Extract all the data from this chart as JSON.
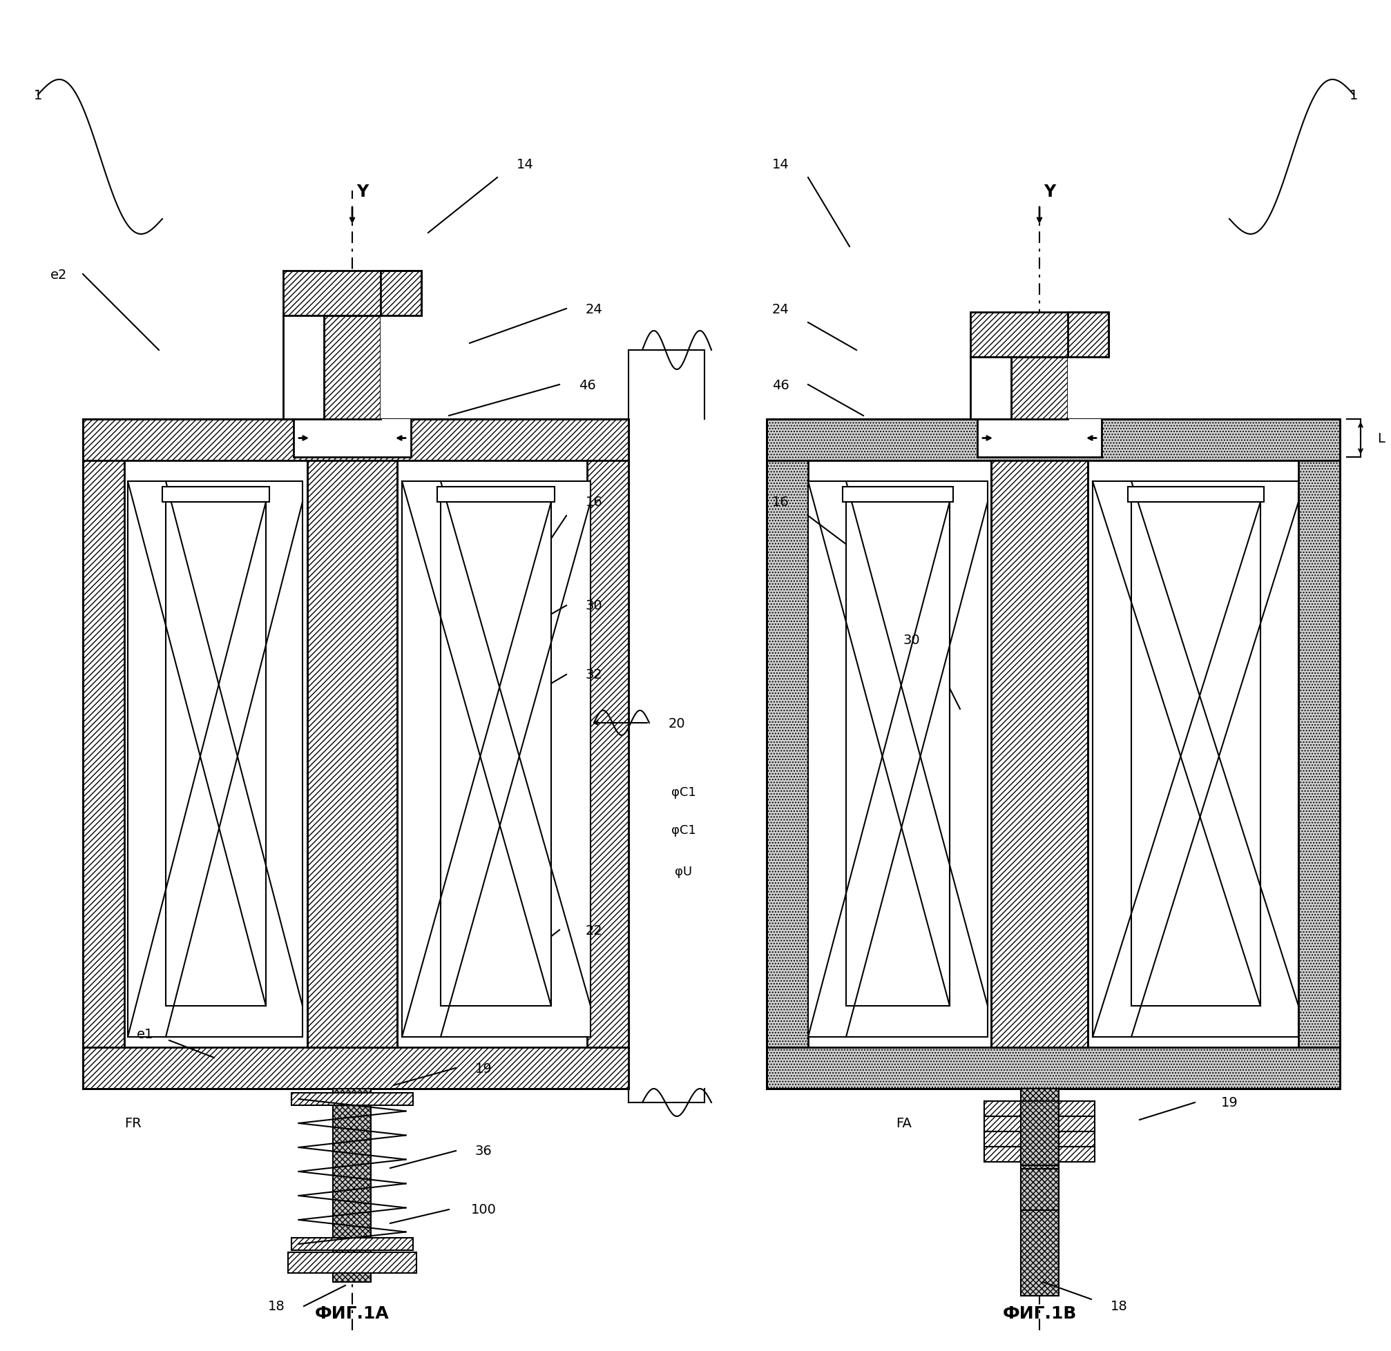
{
  "title_left": "ФИГ.1А",
  "title_right": "ФИГ.1В",
  "bg_color": "#ffffff",
  "labels": {
    "Y_left": "Y",
    "Y_right": "Y",
    "L": "L",
    "n1": "1",
    "ne2": "e2",
    "ne1": "e1",
    "nFR": "FR",
    "nFA": "FA",
    "n14": "14",
    "n16": "16",
    "n18": "18",
    "n19": "19",
    "n20": "20",
    "n22": "22",
    "n24": "24",
    "n30": "30",
    "n32": "32",
    "n36": "36",
    "n46": "46",
    "n100": "100",
    "phiC1": "φC1",
    "phiU": "φU"
  }
}
